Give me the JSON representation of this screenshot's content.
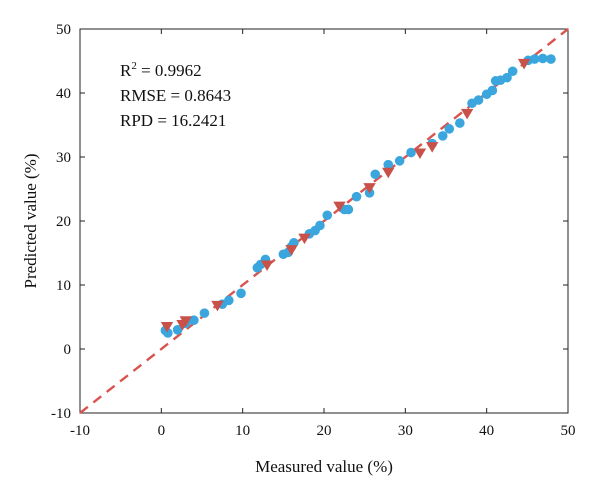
{
  "chart_data": {
    "type": "scatter",
    "xlabel": "Measured value (%)",
    "ylabel": "Predicted value (%)",
    "xlim": [
      -10,
      50
    ],
    "ylim": [
      -10,
      50
    ],
    "xticks": [
      "-10",
      "0",
      "10",
      "20",
      "30",
      "40",
      "50"
    ],
    "yticks": [
      "-10",
      "0",
      "10",
      "20",
      "30",
      "40",
      "50"
    ],
    "grid": false,
    "annotations": [
      {
        "label": "R",
        "sup": "2",
        "rest": " = 0.9962"
      },
      {
        "text": "RMSE = 0.8643"
      },
      {
        "text": "RPD = 16.2421"
      }
    ],
    "reference_line": {
      "x": [
        -10,
        50
      ],
      "y": [
        -10,
        50
      ],
      "color": "#d9534f",
      "style": "dashed"
    },
    "series": [
      {
        "marker": "circle",
        "color": "#3aa6dd",
        "points": [
          [
            0.5,
            2.9
          ],
          [
            0.8,
            2.5
          ],
          [
            2.0,
            3.0
          ],
          [
            3.0,
            4.0
          ],
          [
            4.0,
            4.5
          ],
          [
            5.3,
            5.6
          ],
          [
            7.5,
            7.0
          ],
          [
            8.3,
            7.6
          ],
          [
            9.8,
            8.7
          ],
          [
            11.8,
            12.7
          ],
          [
            12.2,
            13.2
          ],
          [
            12.8,
            14.0
          ],
          [
            15.0,
            14.8
          ],
          [
            15.6,
            15.1
          ],
          [
            16.0,
            16.0
          ],
          [
            16.3,
            16.6
          ],
          [
            18.2,
            18.0
          ],
          [
            18.9,
            18.5
          ],
          [
            19.5,
            19.3
          ],
          [
            20.4,
            20.9
          ],
          [
            22.5,
            21.8
          ],
          [
            23.0,
            21.8
          ],
          [
            24.0,
            23.8
          ],
          [
            25.6,
            24.4
          ],
          [
            26.3,
            27.3
          ],
          [
            27.9,
            28.8
          ],
          [
            29.3,
            29.4
          ],
          [
            30.7,
            30.7
          ],
          [
            33.3,
            32.1
          ],
          [
            34.6,
            33.3
          ],
          [
            35.4,
            34.4
          ],
          [
            36.7,
            35.3
          ],
          [
            38.2,
            38.4
          ],
          [
            39.0,
            38.9
          ],
          [
            40.0,
            39.8
          ],
          [
            40.7,
            40.4
          ],
          [
            41.1,
            41.9
          ],
          [
            41.7,
            42.0
          ],
          [
            42.5,
            42.4
          ],
          [
            43.2,
            43.4
          ],
          [
            45.1,
            45.1
          ],
          [
            45.9,
            45.3
          ],
          [
            46.9,
            45.4
          ],
          [
            47.9,
            45.3
          ]
        ]
      },
      {
        "marker": "triangle-down",
        "color": "#c8524a",
        "points": [
          [
            0.7,
            3.5
          ],
          [
            2.6,
            3.8
          ],
          [
            3.0,
            4.4
          ],
          [
            6.9,
            6.8
          ],
          [
            13.0,
            13.1
          ],
          [
            16.0,
            15.5
          ],
          [
            17.6,
            17.3
          ],
          [
            21.9,
            22.3
          ],
          [
            25.6,
            25.2
          ],
          [
            27.9,
            27.6
          ],
          [
            31.8,
            30.6
          ],
          [
            33.3,
            31.6
          ],
          [
            37.6,
            36.8
          ],
          [
            44.6,
            44.6
          ]
        ]
      }
    ]
  }
}
